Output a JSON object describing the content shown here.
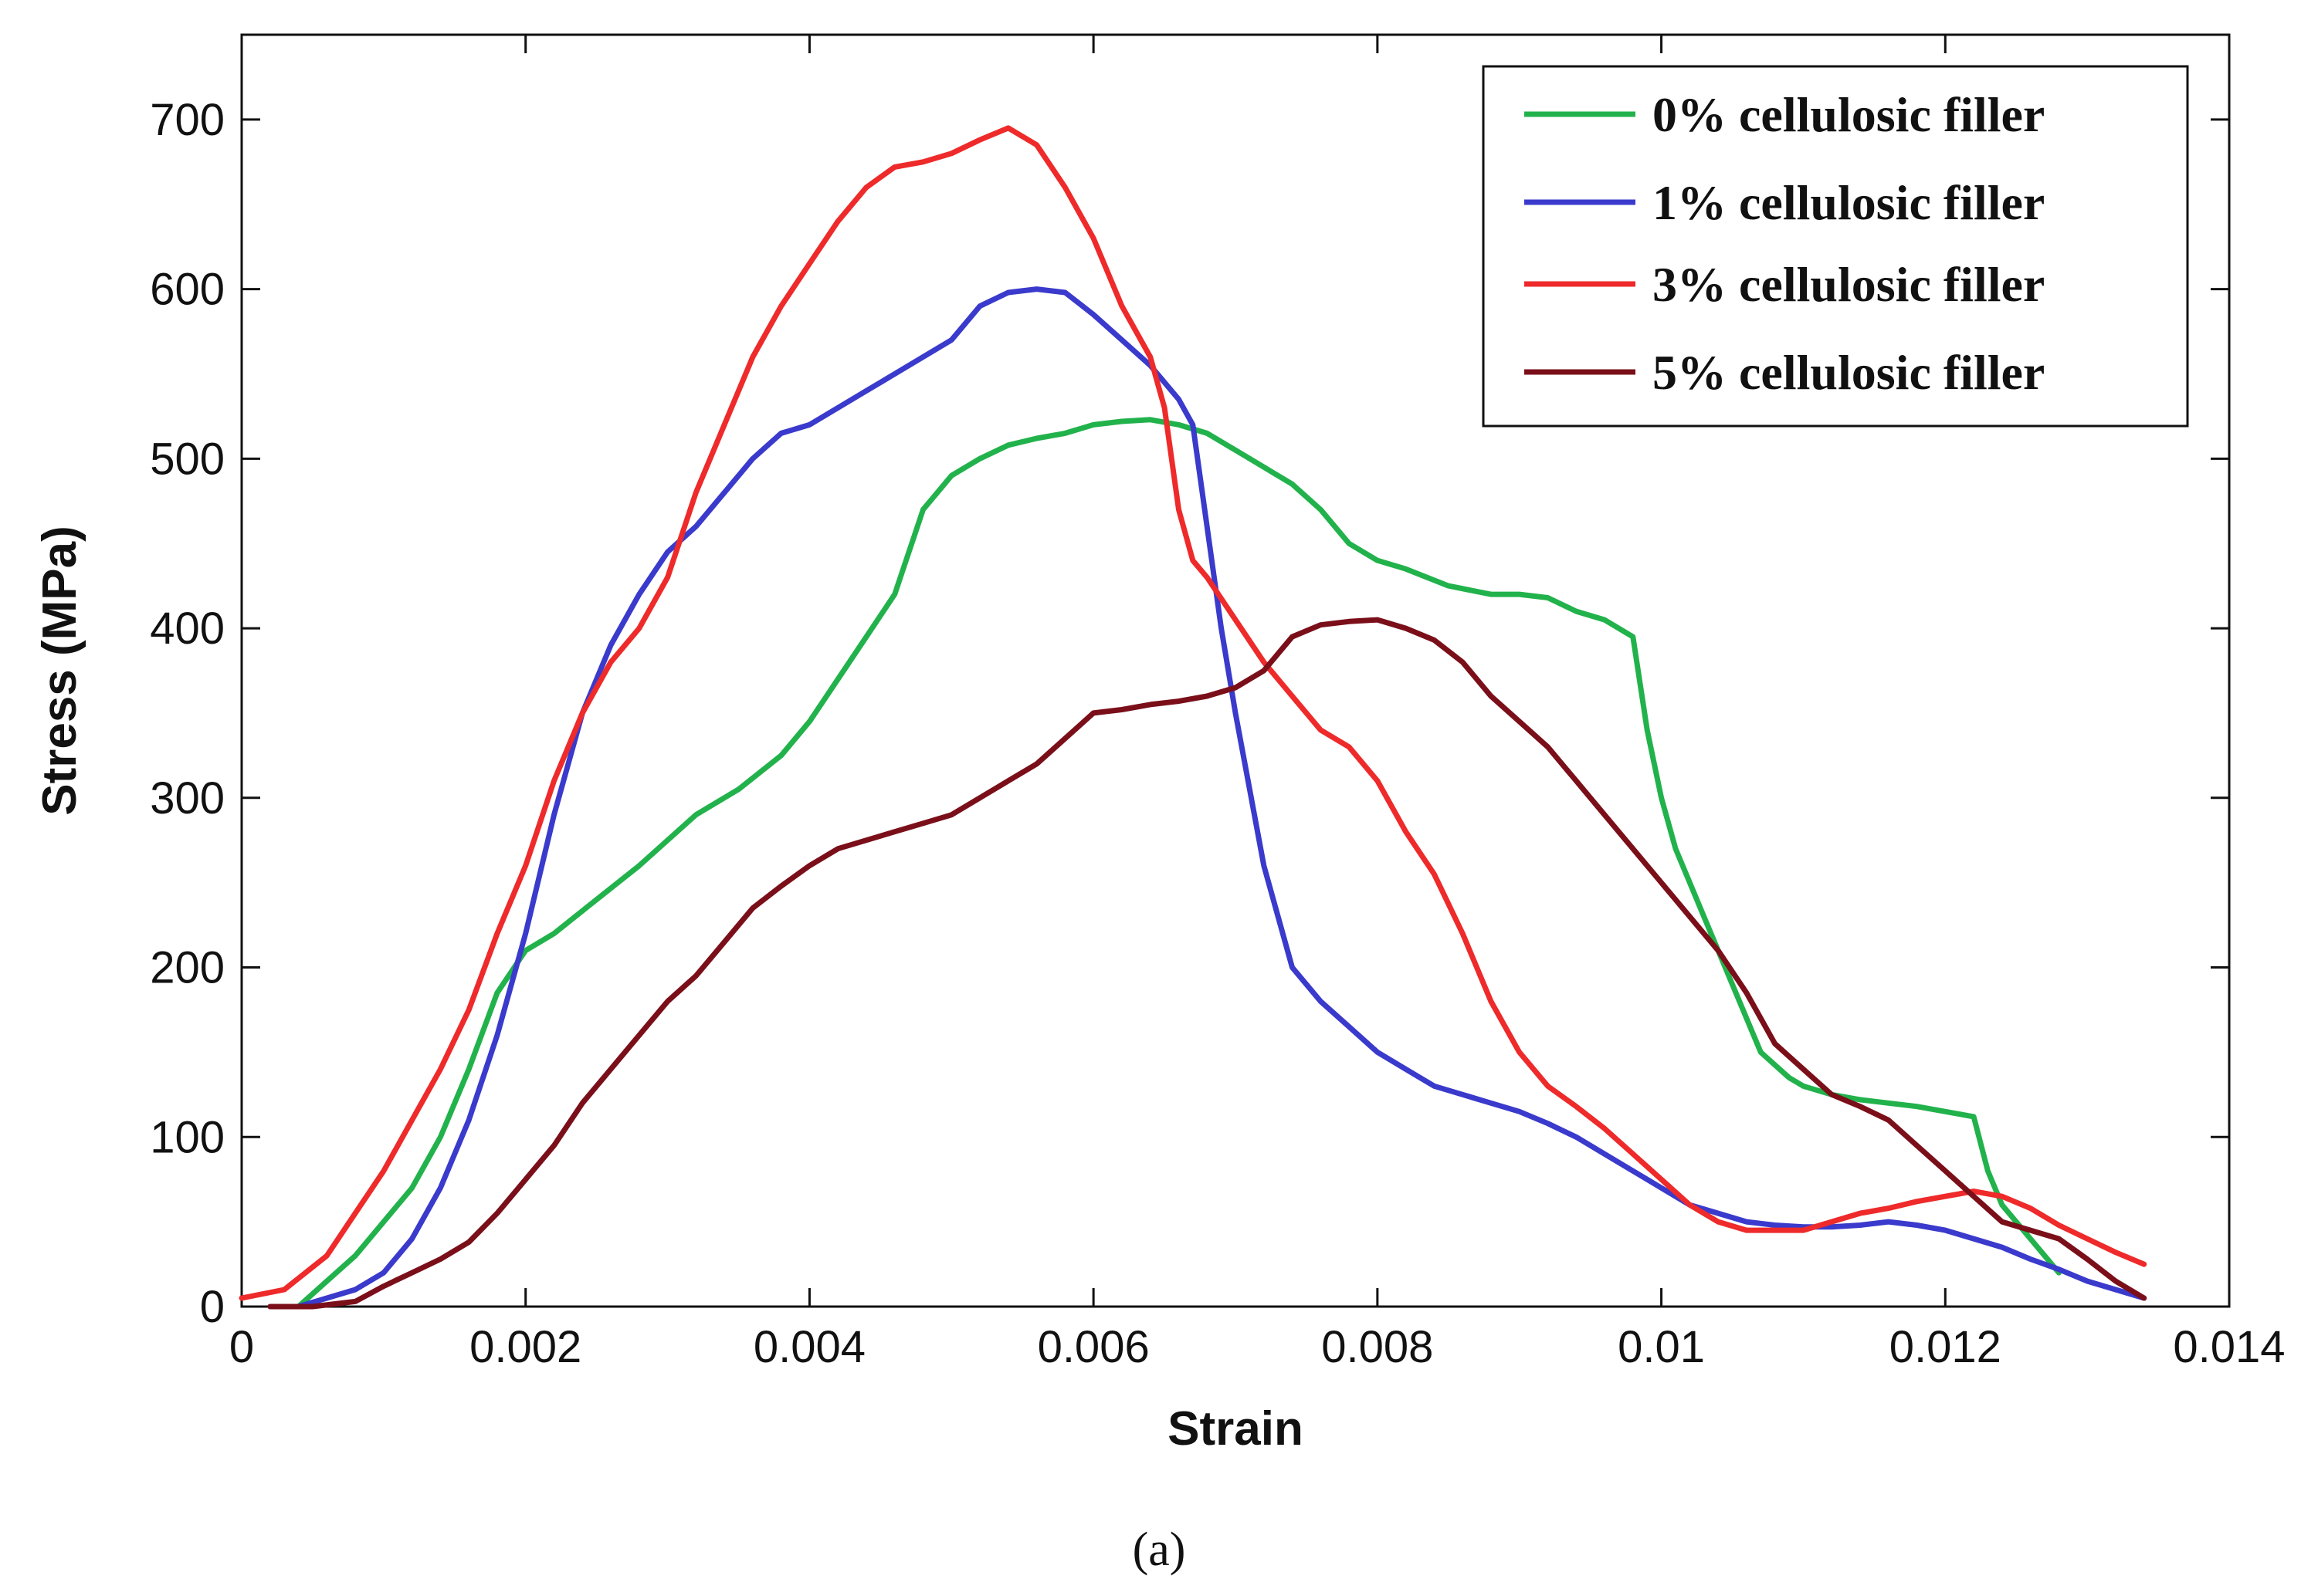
{
  "caption": "(a)",
  "chart_data": {
    "type": "line",
    "title": "",
    "xlabel": "Strain",
    "ylabel": "Stress (MPa)",
    "xlim": [
      0,
      0.014
    ],
    "ylim": [
      0,
      750
    ],
    "xticks": [
      0,
      0.002,
      0.004,
      0.006,
      0.008,
      0.01,
      0.012,
      0.014
    ],
    "xtick_labels": [
      "0",
      "0.002",
      "0.004",
      "0.006",
      "0.008",
      "0.01",
      "0.012",
      "0.014"
    ],
    "yticks": [
      0,
      100,
      200,
      300,
      400,
      500,
      600,
      700
    ],
    "ytick_labels": [
      "0",
      "100",
      "200",
      "300",
      "400",
      "500",
      "600",
      "700"
    ],
    "grid": false,
    "legend_position": "top-right",
    "series": [
      {
        "name": "0% cellulosic filler",
        "color": "#22b24c",
        "x": [
          0.0004,
          0.0006,
          0.0008,
          0.001,
          0.0012,
          0.0014,
          0.0016,
          0.0018,
          0.002,
          0.0022,
          0.0025,
          0.0028,
          0.003,
          0.0032,
          0.0035,
          0.0038,
          0.004,
          0.0042,
          0.0044,
          0.0046,
          0.0048,
          0.005,
          0.0052,
          0.0054,
          0.0056,
          0.0058,
          0.006,
          0.0062,
          0.0064,
          0.0066,
          0.0068,
          0.007,
          0.0072,
          0.0074,
          0.0076,
          0.0078,
          0.008,
          0.0082,
          0.0085,
          0.0088,
          0.009,
          0.0092,
          0.0094,
          0.0096,
          0.0098,
          0.0099,
          0.01,
          0.0101,
          0.0103,
          0.0105,
          0.0107,
          0.0109,
          0.011,
          0.0112,
          0.0114,
          0.0116,
          0.0118,
          0.012,
          0.0122,
          0.0123,
          0.0124,
          0.0126,
          0.0128
        ],
        "values": [
          0,
          15,
          30,
          50,
          70,
          100,
          140,
          185,
          210,
          220,
          240,
          260,
          275,
          290,
          305,
          325,
          345,
          370,
          395,
          420,
          470,
          490,
          500,
          508,
          512,
          515,
          520,
          522,
          523,
          520,
          515,
          505,
          495,
          485,
          470,
          450,
          440,
          435,
          425,
          420,
          420,
          418,
          410,
          405,
          395,
          340,
          300,
          270,
          230,
          190,
          150,
          135,
          130,
          125,
          122,
          120,
          118,
          115,
          112,
          80,
          60,
          40,
          20
        ]
      },
      {
        "name": "1% cellulosic filler",
        "color": "#3a3acc",
        "x": [
          0.0004,
          0.0006,
          0.0008,
          0.001,
          0.0012,
          0.0014,
          0.0016,
          0.0018,
          0.002,
          0.0022,
          0.0024,
          0.0026,
          0.0028,
          0.003,
          0.0032,
          0.0034,
          0.0036,
          0.0038,
          0.004,
          0.0042,
          0.0044,
          0.0046,
          0.0048,
          0.005,
          0.0052,
          0.0054,
          0.0056,
          0.0058,
          0.006,
          0.0062,
          0.0064,
          0.0066,
          0.0067,
          0.0068,
          0.0069,
          0.007,
          0.0072,
          0.0074,
          0.0076,
          0.0078,
          0.008,
          0.0082,
          0.0084,
          0.0086,
          0.0088,
          0.009,
          0.0092,
          0.0094,
          0.0096,
          0.0098,
          0.01,
          0.0102,
          0.0104,
          0.0106,
          0.0108,
          0.011,
          0.0112,
          0.0114,
          0.0116,
          0.0118,
          0.012,
          0.0122,
          0.0124,
          0.0126,
          0.0128,
          0.013,
          0.0132,
          0.0134
        ],
        "values": [
          0,
          5,
          10,
          20,
          40,
          70,
          110,
          160,
          220,
          290,
          350,
          390,
          420,
          445,
          460,
          480,
          500,
          515,
          520,
          530,
          540,
          550,
          560,
          570,
          590,
          598,
          600,
          598,
          585,
          570,
          555,
          535,
          520,
          460,
          400,
          350,
          260,
          200,
          180,
          165,
          150,
          140,
          130,
          125,
          120,
          115,
          108,
          100,
          90,
          80,
          70,
          60,
          55,
          50,
          48,
          47,
          47,
          48,
          50,
          48,
          45,
          40,
          35,
          28,
          22,
          15,
          10,
          5
        ]
      },
      {
        "name": "3% cellulosic filler",
        "color": "#ee2a2a",
        "x": [
          0,
          0.0003,
          0.0006,
          0.0008,
          0.001,
          0.0012,
          0.0014,
          0.0016,
          0.0018,
          0.002,
          0.0022,
          0.0024,
          0.0026,
          0.0028,
          0.003,
          0.0032,
          0.0034,
          0.0036,
          0.0038,
          0.004,
          0.0042,
          0.0044,
          0.0046,
          0.0048,
          0.005,
          0.0052,
          0.0054,
          0.0056,
          0.0058,
          0.006,
          0.0062,
          0.0064,
          0.0065,
          0.0066,
          0.0067,
          0.0068,
          0.007,
          0.0072,
          0.0074,
          0.0076,
          0.0078,
          0.008,
          0.0082,
          0.0084,
          0.0086,
          0.0088,
          0.009,
          0.0092,
          0.0094,
          0.0096,
          0.0098,
          0.01,
          0.0102,
          0.0104,
          0.0106,
          0.0108,
          0.011,
          0.0112,
          0.0114,
          0.0116,
          0.0118,
          0.012,
          0.0122,
          0.0124,
          0.0126,
          0.0128,
          0.013,
          0.0132,
          0.0134
        ],
        "values": [
          5,
          10,
          30,
          55,
          80,
          110,
          140,
          175,
          220,
          260,
          310,
          350,
          380,
          400,
          430,
          480,
          520,
          560,
          590,
          615,
          640,
          660,
          672,
          675,
          680,
          688,
          695,
          685,
          660,
          630,
          590,
          560,
          530,
          470,
          440,
          430,
          405,
          380,
          360,
          340,
          330,
          310,
          280,
          255,
          220,
          180,
          150,
          130,
          118,
          105,
          90,
          75,
          60,
          50,
          45,
          45,
          45,
          50,
          55,
          58,
          62,
          65,
          68,
          65,
          58,
          48,
          40,
          32,
          25
        ]
      },
      {
        "name": "5% cellulosic filler",
        "color": "#7a0f1a",
        "x": [
          0.0002,
          0.0005,
          0.0008,
          0.001,
          0.0012,
          0.0014,
          0.0016,
          0.0018,
          0.002,
          0.0022,
          0.0024,
          0.0026,
          0.0028,
          0.003,
          0.0032,
          0.0034,
          0.0036,
          0.0038,
          0.004,
          0.0042,
          0.0044,
          0.0046,
          0.0048,
          0.005,
          0.0052,
          0.0054,
          0.0056,
          0.0058,
          0.006,
          0.0062,
          0.0064,
          0.0066,
          0.0068,
          0.007,
          0.0072,
          0.0074,
          0.0076,
          0.0078,
          0.008,
          0.0082,
          0.0084,
          0.0086,
          0.0088,
          0.009,
          0.0092,
          0.0094,
          0.0096,
          0.0098,
          0.01,
          0.0102,
          0.0104,
          0.0106,
          0.0108,
          0.011,
          0.0112,
          0.0114,
          0.0116,
          0.0118,
          0.012,
          0.0122,
          0.0124,
          0.0126,
          0.0128,
          0.013,
          0.0132,
          0.0134
        ],
        "values": [
          0,
          0,
          3,
          12,
          20,
          28,
          38,
          55,
          75,
          95,
          120,
          140,
          160,
          180,
          195,
          215,
          235,
          248,
          260,
          270,
          275,
          280,
          285,
          290,
          300,
          310,
          320,
          335,
          350,
          352,
          355,
          357,
          360,
          365,
          375,
          395,
          402,
          404,
          405,
          400,
          393,
          380,
          360,
          345,
          330,
          310,
          290,
          270,
          250,
          230,
          210,
          185,
          155,
          140,
          125,
          118,
          110,
          95,
          80,
          65,
          50,
          45,
          40,
          28,
          15,
          5
        ]
      }
    ]
  }
}
